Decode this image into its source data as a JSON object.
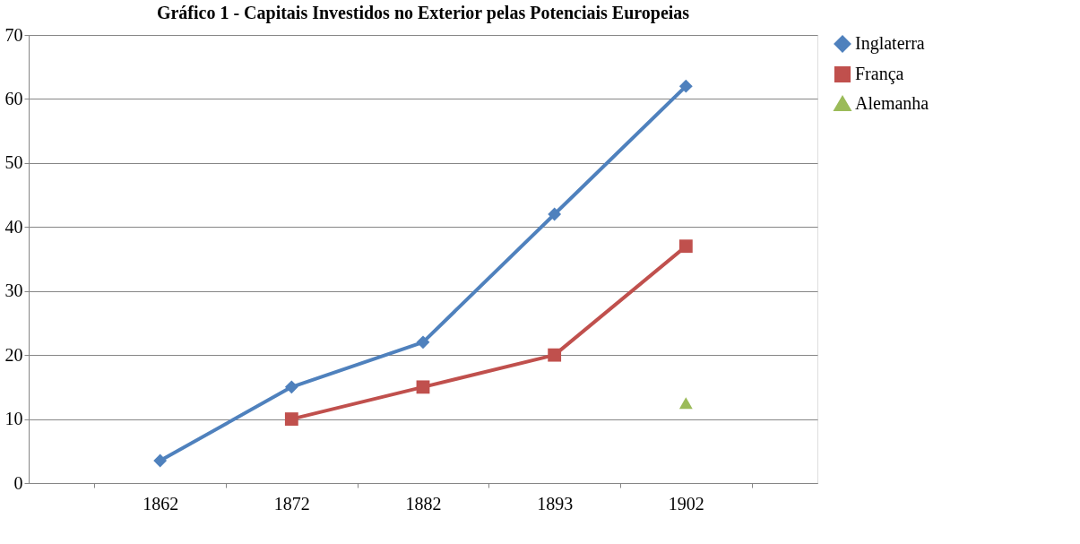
{
  "chart_data": {
    "type": "line",
    "title": "Gráfico 1 - Capitais Investidos no Exterior pelas Potenciais Europeias",
    "categories": [
      "1862",
      "1872",
      "1882",
      "1893",
      "1902"
    ],
    "series": [
      {
        "name": "Inglaterra",
        "color": "#4f81bd",
        "marker": "diamond",
        "values": [
          3.5,
          15,
          22,
          42,
          62
        ]
      },
      {
        "name": "França",
        "color": "#c0504d",
        "marker": "square",
        "values": [
          null,
          10,
          15,
          20,
          37
        ]
      },
      {
        "name": "Alemanha",
        "color": "#9bbb59",
        "marker": "triangle",
        "values": [
          null,
          null,
          null,
          null,
          12.5
        ]
      }
    ],
    "ylim": [
      0,
      70
    ],
    "yticks": [
      0,
      10,
      20,
      30,
      40,
      50,
      60,
      70
    ],
    "grid": "y",
    "legend": "right",
    "line_style": "solid"
  }
}
